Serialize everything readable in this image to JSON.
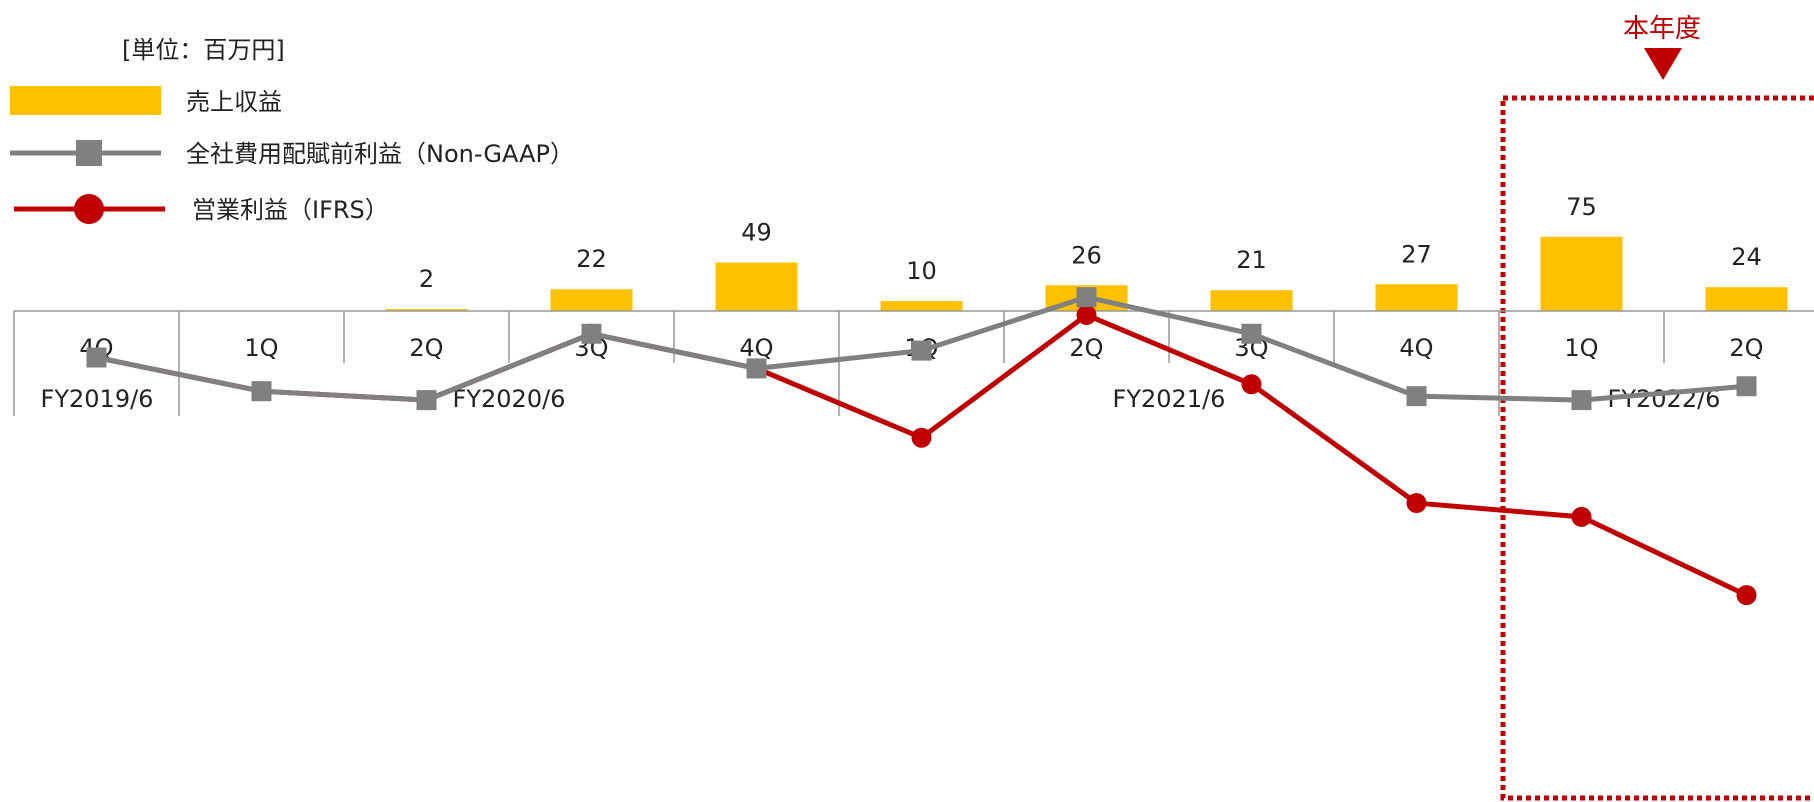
{
  "chart_data": {
    "type": "bar",
    "unit_label": "[単位：百万円]",
    "categories": [
      "4Q",
      "1Q",
      "2Q",
      "3Q",
      "4Q",
      "1Q",
      "2Q",
      "3Q",
      "4Q",
      "1Q",
      "2Q"
    ],
    "fiscal_years": [
      {
        "label": "FY2019/6",
        "start": 0,
        "end": 0
      },
      {
        "label": "FY2020/6",
        "start": 1,
        "end": 4
      },
      {
        "label": "FY2021/6",
        "start": 5,
        "end": 8
      },
      {
        "label": "FY2022/6",
        "start": 9,
        "end": 10
      }
    ],
    "series": [
      {
        "name": "売上収益",
        "kind": "bar",
        "color": "#FFC000",
        "values": [
          0,
          0,
          2,
          22,
          49,
          10,
          26,
          21,
          27,
          75,
          24
        ],
        "labels": [
          "",
          "",
          "2",
          "22",
          "49",
          "10",
          "26",
          "21",
          "27",
          "75",
          "24"
        ]
      },
      {
        "name": "全社費用配賦前利益（Non-GAAP）",
        "kind": "line",
        "marker": "square",
        "color": "#808080",
        "values": [
          -47,
          -81,
          -90,
          -23,
          -58,
          -40,
          14,
          -23,
          -86,
          -90,
          -76
        ]
      },
      {
        "name": "営業利益（IFRS）",
        "kind": "line",
        "marker": "circle",
        "color": "#C00000",
        "values": [
          -47,
          -81,
          -90,
          -23,
          -58,
          -128,
          -4,
          -74,
          -194,
          -208,
          -287
        ]
      }
    ],
    "ylim": [
      -320,
      120
    ],
    "legend_position": "top-left",
    "highlight": {
      "label": "本年度",
      "start": 9,
      "end": 10,
      "color": "#C00000"
    }
  }
}
